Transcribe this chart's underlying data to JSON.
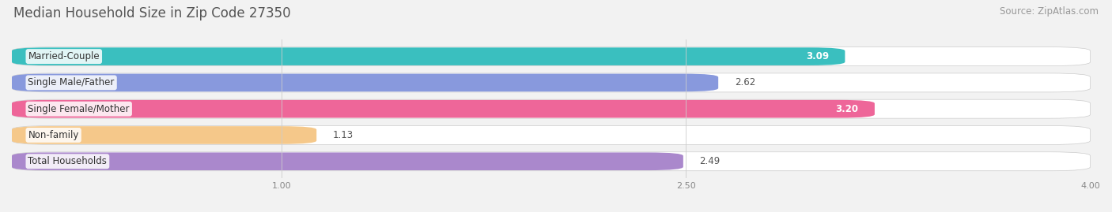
{
  "title": "Median Household Size in Zip Code 27350",
  "source": "Source: ZipAtlas.com",
  "categories": [
    "Married-Couple",
    "Single Male/Father",
    "Single Female/Mother",
    "Non-family",
    "Total Households"
  ],
  "values": [
    3.09,
    2.62,
    3.2,
    1.13,
    2.49
  ],
  "bar_colors": [
    "#3abfbf",
    "#8899dd",
    "#ee6699",
    "#f5c88a",
    "#aa88cc"
  ],
  "value_inside": [
    true,
    false,
    true,
    false,
    false
  ],
  "value_white": [
    true,
    false,
    true,
    false,
    false
  ],
  "xmin": 0.0,
  "xmax": 4.0,
  "xlim_left": 0.0,
  "xlim_right": 4.0,
  "xticks": [
    1.0,
    2.5,
    4.0
  ],
  "background_color": "#f2f2f2",
  "bar_bg_color": "#e0e0e0",
  "row_bg_color": "#ebebeb",
  "title_fontsize": 12,
  "source_fontsize": 8.5,
  "label_fontsize": 8.5,
  "value_fontsize": 8.5
}
